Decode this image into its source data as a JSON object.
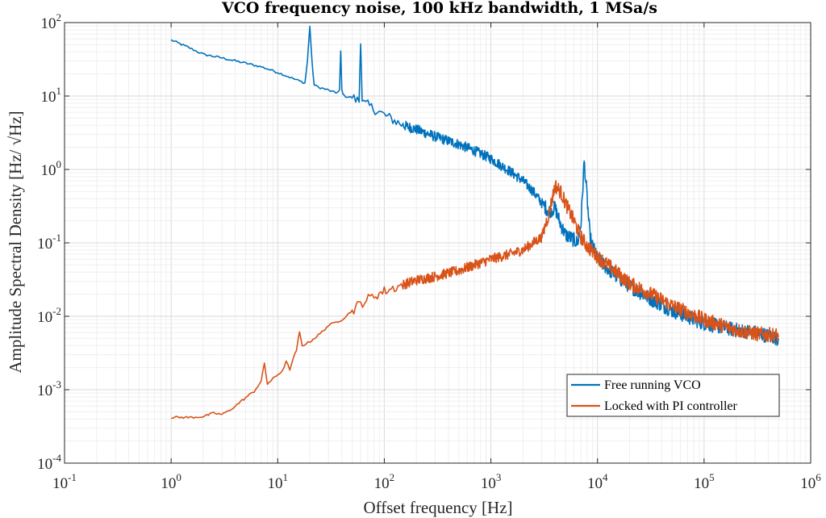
{
  "chart_data": {
    "type": "line",
    "title": "VCO frequency noise, 100 kHz bandwidth, 1 MSa/s",
    "xlabel": "Offset frequency [Hz]",
    "ylabel": "Amplitude Spectral Density [Hz/ √Hz]",
    "xscale": "log",
    "yscale": "log",
    "xlim": [
      0.1,
      1000000
    ],
    "ylim": [
      0.0001,
      100
    ],
    "x_ticks": [
      {
        "base": "10",
        "exp": "-1",
        "value": 0.1
      },
      {
        "base": "10",
        "exp": "0",
        "value": 1
      },
      {
        "base": "10",
        "exp": "1",
        "value": 10
      },
      {
        "base": "10",
        "exp": "2",
        "value": 100
      },
      {
        "base": "10",
        "exp": "3",
        "value": 1000
      },
      {
        "base": "10",
        "exp": "4",
        "value": 10000
      },
      {
        "base": "10",
        "exp": "5",
        "value": 100000
      },
      {
        "base": "10",
        "exp": "6",
        "value": 1000000
      }
    ],
    "y_ticks": [
      {
        "base": "10",
        "exp": "-4",
        "value": 0.0001
      },
      {
        "base": "10",
        "exp": "-3",
        "value": 0.001
      },
      {
        "base": "10",
        "exp": "-2",
        "value": 0.01
      },
      {
        "base": "10",
        "exp": "-1",
        "value": 0.1
      },
      {
        "base": "10",
        "exp": "0",
        "value": 1
      },
      {
        "base": "10",
        "exp": "1",
        "value": 10
      },
      {
        "base": "10",
        "exp": "2",
        "value": 100
      }
    ],
    "grid": true,
    "minor_grid": true,
    "legend_position": "bottom-right",
    "series": [
      {
        "name": "Free running VCO",
        "color": "#0072BD",
        "x": [
          1,
          1.5,
          2,
          3,
          5,
          7,
          10,
          13,
          16,
          18,
          19,
          20,
          21,
          22,
          25,
          30,
          35,
          38,
          39,
          40,
          42,
          50,
          58,
          60,
          62,
          70,
          100,
          150,
          200,
          300,
          500,
          700,
          1000,
          1500,
          2000,
          2500,
          3000,
          3500,
          4000,
          4500,
          5000,
          6000,
          6500,
          7000,
          7500,
          8000,
          8500,
          9000,
          10000,
          15000,
          20000,
          30000,
          50000,
          100000,
          200000,
          300000,
          500000
        ],
        "y": [
          58,
          45,
          37,
          33,
          28,
          25,
          21,
          18,
          16,
          15,
          30,
          90,
          28,
          14,
          13,
          12,
          11,
          12,
          40,
          12,
          10,
          9.5,
          8.5,
          60,
          8,
          7.5,
          5.5,
          4,
          3.5,
          2.8,
          2.2,
          1.8,
          1.4,
          0.95,
          0.7,
          0.5,
          0.35,
          0.27,
          0.3,
          0.18,
          0.13,
          0.11,
          0.1,
          0.18,
          1.3,
          0.4,
          0.12,
          0.09,
          0.06,
          0.035,
          0.026,
          0.018,
          0.012,
          0.008,
          0.0065,
          0.006,
          0.005
        ]
      },
      {
        "name": "Locked with PI controller",
        "color": "#D95319",
        "x": [
          1,
          1.5,
          2,
          2.5,
          3,
          3.5,
          4,
          5,
          6,
          7,
          7.5,
          8,
          9,
          10,
          11,
          12,
          13,
          15,
          16,
          17,
          20,
          25,
          30,
          40,
          50,
          60,
          80,
          100,
          150,
          200,
          300,
          500,
          700,
          1000,
          1500,
          2000,
          2500,
          3000,
          3500,
          4000,
          4500,
          5000,
          6000,
          7000,
          8000,
          10000,
          15000,
          20000,
          30000,
          50000,
          100000,
          200000,
          300000,
          500000
        ],
        "y": [
          0.00042,
          0.00042,
          0.00043,
          0.00048,
          0.00046,
          0.00052,
          0.0006,
          0.00078,
          0.00095,
          0.0013,
          0.0023,
          0.0012,
          0.0014,
          0.0016,
          0.0018,
          0.0024,
          0.0019,
          0.0035,
          0.006,
          0.004,
          0.0045,
          0.0058,
          0.0075,
          0.009,
          0.012,
          0.015,
          0.019,
          0.022,
          0.027,
          0.031,
          0.035,
          0.042,
          0.05,
          0.06,
          0.07,
          0.08,
          0.1,
          0.12,
          0.25,
          0.6,
          0.5,
          0.35,
          0.2,
          0.12,
          0.09,
          0.065,
          0.04,
          0.028,
          0.021,
          0.014,
          0.009,
          0.0065,
          0.0058,
          0.0055
        ]
      }
    ]
  }
}
